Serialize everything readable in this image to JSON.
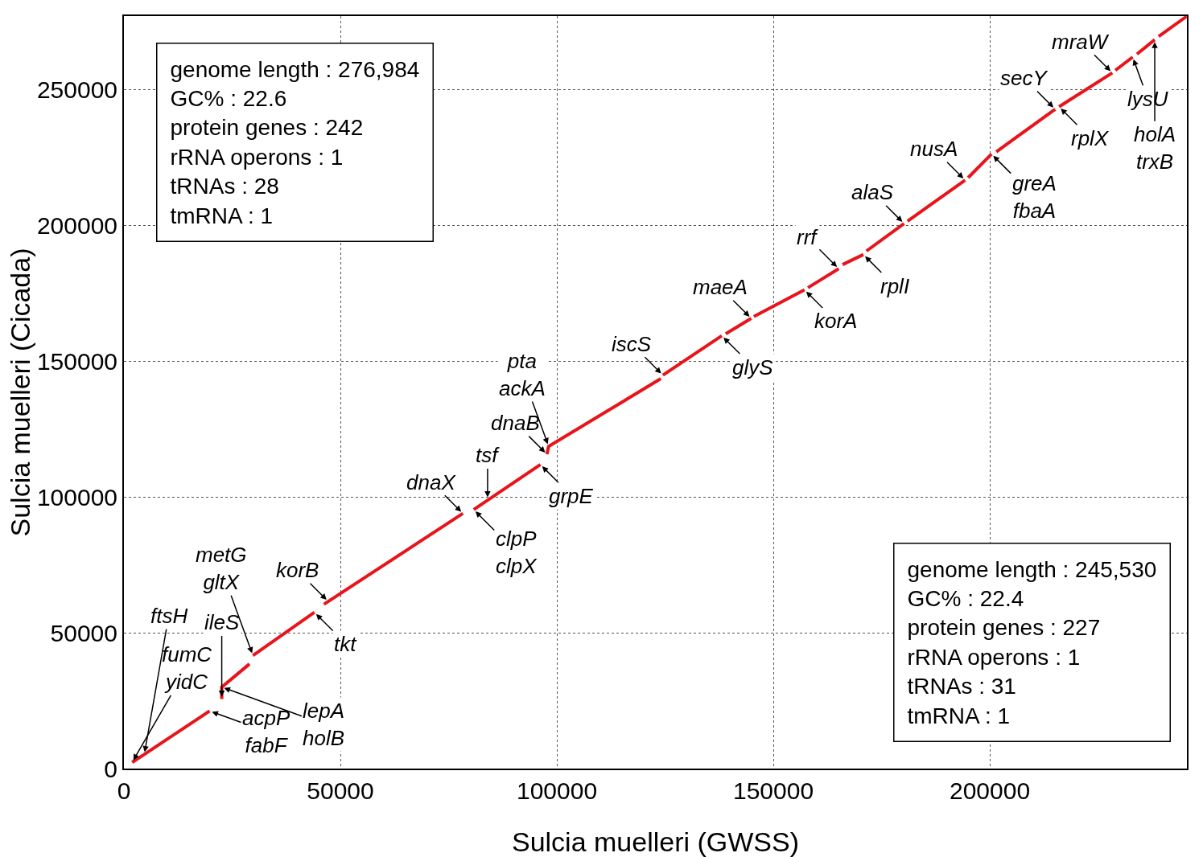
{
  "chart_data": {
    "type": "line",
    "xlabel": "Sulcia muelleri (GWSS)",
    "ylabel": "Sulcia muelleri (Cicada)",
    "xlim": [
      0,
      245530
    ],
    "ylim": [
      0,
      276984
    ],
    "xticks": [
      0,
      50000,
      100000,
      150000,
      200000
    ],
    "yticks": [
      0,
      50000,
      100000,
      150000,
      200000,
      250000
    ],
    "grid": true,
    "line_style": "solid",
    "series": [
      {
        "color": "#e8141b",
        "x": [
          1900,
          4700,
          19800
        ],
        "values": [
          2300,
          5200,
          21200
        ]
      },
      {
        "color": "#e8141b",
        "x": [
          22600,
          22600,
          29000
        ],
        "values": [
          25600,
          30000,
          38500
        ]
      },
      {
        "color": "#e8141b",
        "x": [
          29800,
          44000
        ],
        "values": [
          41600,
          57500
        ]
      },
      {
        "color": "#e8141b",
        "x": [
          46200,
          78300
        ],
        "values": [
          60500,
          93900
        ]
      },
      {
        "color": "#e8141b",
        "x": [
          80800,
          96200
        ],
        "values": [
          95300,
          111900
        ]
      },
      {
        "color": "#e8141b",
        "x": [
          97700,
          98100,
          124000
        ],
        "values": [
          115700,
          118600,
          143500
        ]
      },
      {
        "color": "#e8141b",
        "x": [
          124500,
          138100
        ],
        "values": [
          144800,
          159300
        ]
      },
      {
        "color": "#e8141b",
        "x": [
          139000,
          144900
        ],
        "values": [
          160000,
          165700
        ]
      },
      {
        "color": "#e8141b",
        "x": [
          145500,
          157200
        ],
        "values": [
          166400,
          176200
        ]
      },
      {
        "color": "#e8141b",
        "x": [
          158000,
          165100
        ],
        "values": [
          177000,
          184000
        ]
      },
      {
        "color": "#e8141b",
        "x": [
          166000,
          170800
        ],
        "values": [
          185500,
          189200
        ]
      },
      {
        "color": "#e8141b",
        "x": [
          171500,
          180200
        ],
        "values": [
          190500,
          200600
        ]
      },
      {
        "color": "#e8141b",
        "x": [
          181000,
          194300
        ],
        "values": [
          201500,
          216600
        ]
      },
      {
        "color": "#e8141b",
        "x": [
          195000,
          200400
        ],
        "values": [
          217500,
          226200
        ]
      },
      {
        "color": "#e8141b",
        "x": [
          201500,
          215100
        ],
        "values": [
          227000,
          242700
        ]
      },
      {
        "color": "#e8141b",
        "x": [
          216000,
          228300
        ],
        "values": [
          243600,
          256100
        ]
      },
      {
        "color": "#e8141b",
        "x": [
          229000,
          233000
        ],
        "values": [
          257000,
          261900
        ]
      },
      {
        "color": "#e8141b",
        "x": [
          234000,
          238100
        ],
        "values": [
          263000,
          268300
        ]
      },
      {
        "color": "#e8141b",
        "x": [
          239000,
          245500
        ],
        "values": [
          269500,
          276900
        ]
      }
    ],
    "annotations": [
      "genome length : 276,984\nGC% : 22.6\nprotein genes : 242\nrRNA operons : 1\ntRNAs : 28\ntmRNA : 1",
      "genome length : 245,530\nGC% : 22.4\nprotein genes : 227\nrRNA operons : 1\ntRNAs : 31\ntmRNA : 1",
      {
        "text": "fumC\nyidC",
        "x": 1900,
        "y": 2300
      },
      {
        "text": "ftsH",
        "x": 4700,
        "y": 5200
      },
      {
        "text": "acpP\nfabF",
        "x": 19800,
        "y": 21200
      },
      {
        "text": "ileS",
        "x": 22600,
        "y": 25600
      },
      {
        "text": "lepA\nholB",
        "x": 22600,
        "y": 30000
      },
      {
        "text": "korB",
        "x": 47200,
        "y": 61500
      },
      {
        "text": "metG\ngltX",
        "x": 29800,
        "y": 41600
      },
      {
        "text": "tkt",
        "x": 44000,
        "y": 57500
      },
      {
        "text": "dnaX",
        "x": 78300,
        "y": 93900
      },
      {
        "text": "clpP\nclpX",
        "x": 80800,
        "y": 95300
      },
      {
        "text": "tsf",
        "x": 84000,
        "y": 99000
      },
      {
        "text": "grpE",
        "x": 96200,
        "y": 111900
      },
      {
        "text": "dnaB",
        "x": 97700,
        "y": 115700
      },
      {
        "text": "iscS",
        "x": 124500,
        "y": 144800
      },
      {
        "text": "pta\nackA",
        "x": 98100,
        "y": 118600
      },
      {
        "text": "maeA",
        "x": 144900,
        "y": 165700
      },
      {
        "text": "glyS",
        "x": 138100,
        "y": 159300
      },
      {
        "text": "korA",
        "x": 157200,
        "y": 176200
      },
      {
        "text": "rrf",
        "x": 165100,
        "y": 184000
      },
      {
        "text": "secY",
        "x": 215100,
        "y": 242700
      },
      {
        "text": "rplI",
        "x": 170800,
        "y": 189200
      },
      {
        "text": "mraW",
        "x": 228300,
        "y": 256100
      },
      {
        "text": "alaS",
        "x": 180200,
        "y": 200600
      },
      {
        "text": "nusA",
        "x": 194300,
        "y": 216600
      },
      {
        "text": "greA\nfbaA",
        "x": 200400,
        "y": 226200
      },
      {
        "text": "rplX",
        "x": 216000,
        "y": 243600
      },
      {
        "text": "lysU",
        "x": 233000,
        "y": 261900
      },
      {
        "text": "holA\ntrxB",
        "x": 238100,
        "y": 268300
      }
    ]
  }
}
